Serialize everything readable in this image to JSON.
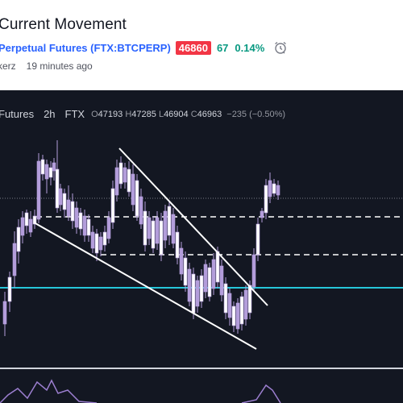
{
  "header": {
    "title": "Current Movement",
    "symbol_link": "Perpetual Futures (FTX:BTCPERP)",
    "price": "46860",
    "change": "67",
    "change_pct": "0.14%",
    "author": "kerz",
    "posted": "19 minutes ago"
  },
  "chart": {
    "legend": {
      "symbol": "Futures",
      "timeframe": "2h",
      "exchange": "FTX",
      "open_label": "O",
      "open": "47193",
      "high_label": "H",
      "high": "47285",
      "low_label": "L",
      "low": "46904",
      "close_label": "C",
      "close": "46963",
      "delta": "−235 (−0.50%)"
    },
    "colors": {
      "background": "#131722",
      "candle": "#b39ddb",
      "candle_body": "#ffffff",
      "support_line": "#26c6da",
      "drawing": "#ffffff"
    },
    "icons": [
      "alarm-clock-icon"
    ]
  }
}
